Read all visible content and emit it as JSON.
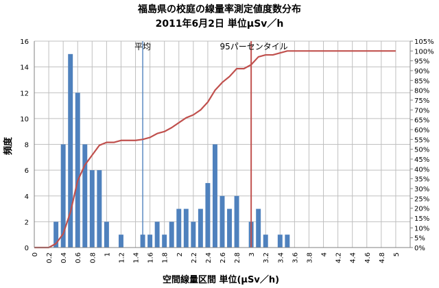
{
  "chart_data": {
    "type": "bar",
    "title": [
      "福島県の校庭の線量率測定値度数分布",
      "2011年6月2日 単位μSv／h"
    ],
    "xlabel": "空間線量区間 単位(μSv／h)",
    "ylabel": "頻度",
    "x_ticks": [
      "0",
      "0.2",
      "0.4",
      "0.6",
      "0.8",
      "1",
      "1.2",
      "1.4",
      "1.6",
      "1.8",
      "2",
      "2.2",
      "2.4",
      "2.6",
      "2.8",
      "3",
      "3.2",
      "3.4",
      "3.6",
      "3.8",
      "4",
      "4.2",
      "4.4",
      "4.6",
      "4.8",
      "5"
    ],
    "y_ticks": [
      "0",
      "2",
      "4",
      "6",
      "8",
      "10",
      "12",
      "14",
      "16"
    ],
    "y2_ticks": [
      "0%",
      "5%",
      "10%",
      "15%",
      "20%",
      "25%",
      "30%",
      "35%",
      "40%",
      "45%",
      "50%",
      "55%",
      "60%",
      "65%",
      "70%",
      "75%",
      "80%",
      "85%",
      "90%",
      "95%",
      "100%",
      "105%"
    ],
    "ylim": [
      0,
      16
    ],
    "y2lim": [
      0,
      105
    ],
    "grid": true,
    "series": [
      {
        "type": "bar",
        "color": "#4f81bd",
        "x": [
          0.3,
          0.4,
          0.5,
          0.6,
          0.7,
          0.8,
          0.9,
          1.0,
          1.2,
          1.5,
          1.6,
          1.7,
          1.8,
          1.9,
          2.0,
          2.1,
          2.2,
          2.3,
          2.4,
          2.5,
          2.6,
          2.7,
          2.8,
          3.0,
          3.1,
          3.2,
          3.4,
          3.5
        ],
        "values": [
          2,
          8,
          15,
          12,
          8,
          6,
          6,
          2,
          1,
          1,
          1,
          2,
          1,
          2,
          3,
          3,
          2,
          3,
          5,
          8,
          4,
          3,
          4,
          2,
          3,
          1,
          1,
          1
        ]
      },
      {
        "type": "line",
        "color": "#c0504d",
        "x": [
          0,
          0.1,
          0.2,
          0.3,
          0.4,
          0.5,
          0.6,
          0.7,
          0.8,
          0.9,
          1.0,
          1.1,
          1.2,
          1.3,
          1.4,
          1.5,
          1.6,
          1.7,
          1.8,
          1.9,
          2.0,
          2.1,
          2.2,
          2.3,
          2.4,
          2.5,
          2.6,
          2.7,
          2.8,
          2.9,
          3.0,
          3.1,
          3.2,
          3.3,
          3.4,
          3.5,
          3.6,
          3.7,
          3.8,
          3.9,
          4.0,
          4.1,
          4.2,
          4.3,
          4.4,
          4.5,
          4.6,
          4.7,
          4.8,
          4.9,
          5.0
        ],
        "values": [
          0,
          0,
          0,
          2,
          7,
          18,
          34,
          42,
          47,
          52,
          53.5,
          53.5,
          54.5,
          54.5,
          54.5,
          55,
          56,
          58,
          59,
          61,
          63.5,
          66,
          67.5,
          70,
          74,
          80,
          84,
          87,
          91,
          91,
          93,
          97,
          98,
          98,
          99,
          100,
          100,
          100,
          100,
          100,
          100,
          100,
          100,
          100,
          100,
          100,
          100,
          100,
          100,
          100,
          100
        ]
      }
    ],
    "annotations": [
      {
        "label": "平均",
        "x": 1.5,
        "color": "#4f81bd"
      },
      {
        "label": "95パーセンタイル",
        "x": 3.0,
        "color": "#c0504d"
      }
    ]
  }
}
